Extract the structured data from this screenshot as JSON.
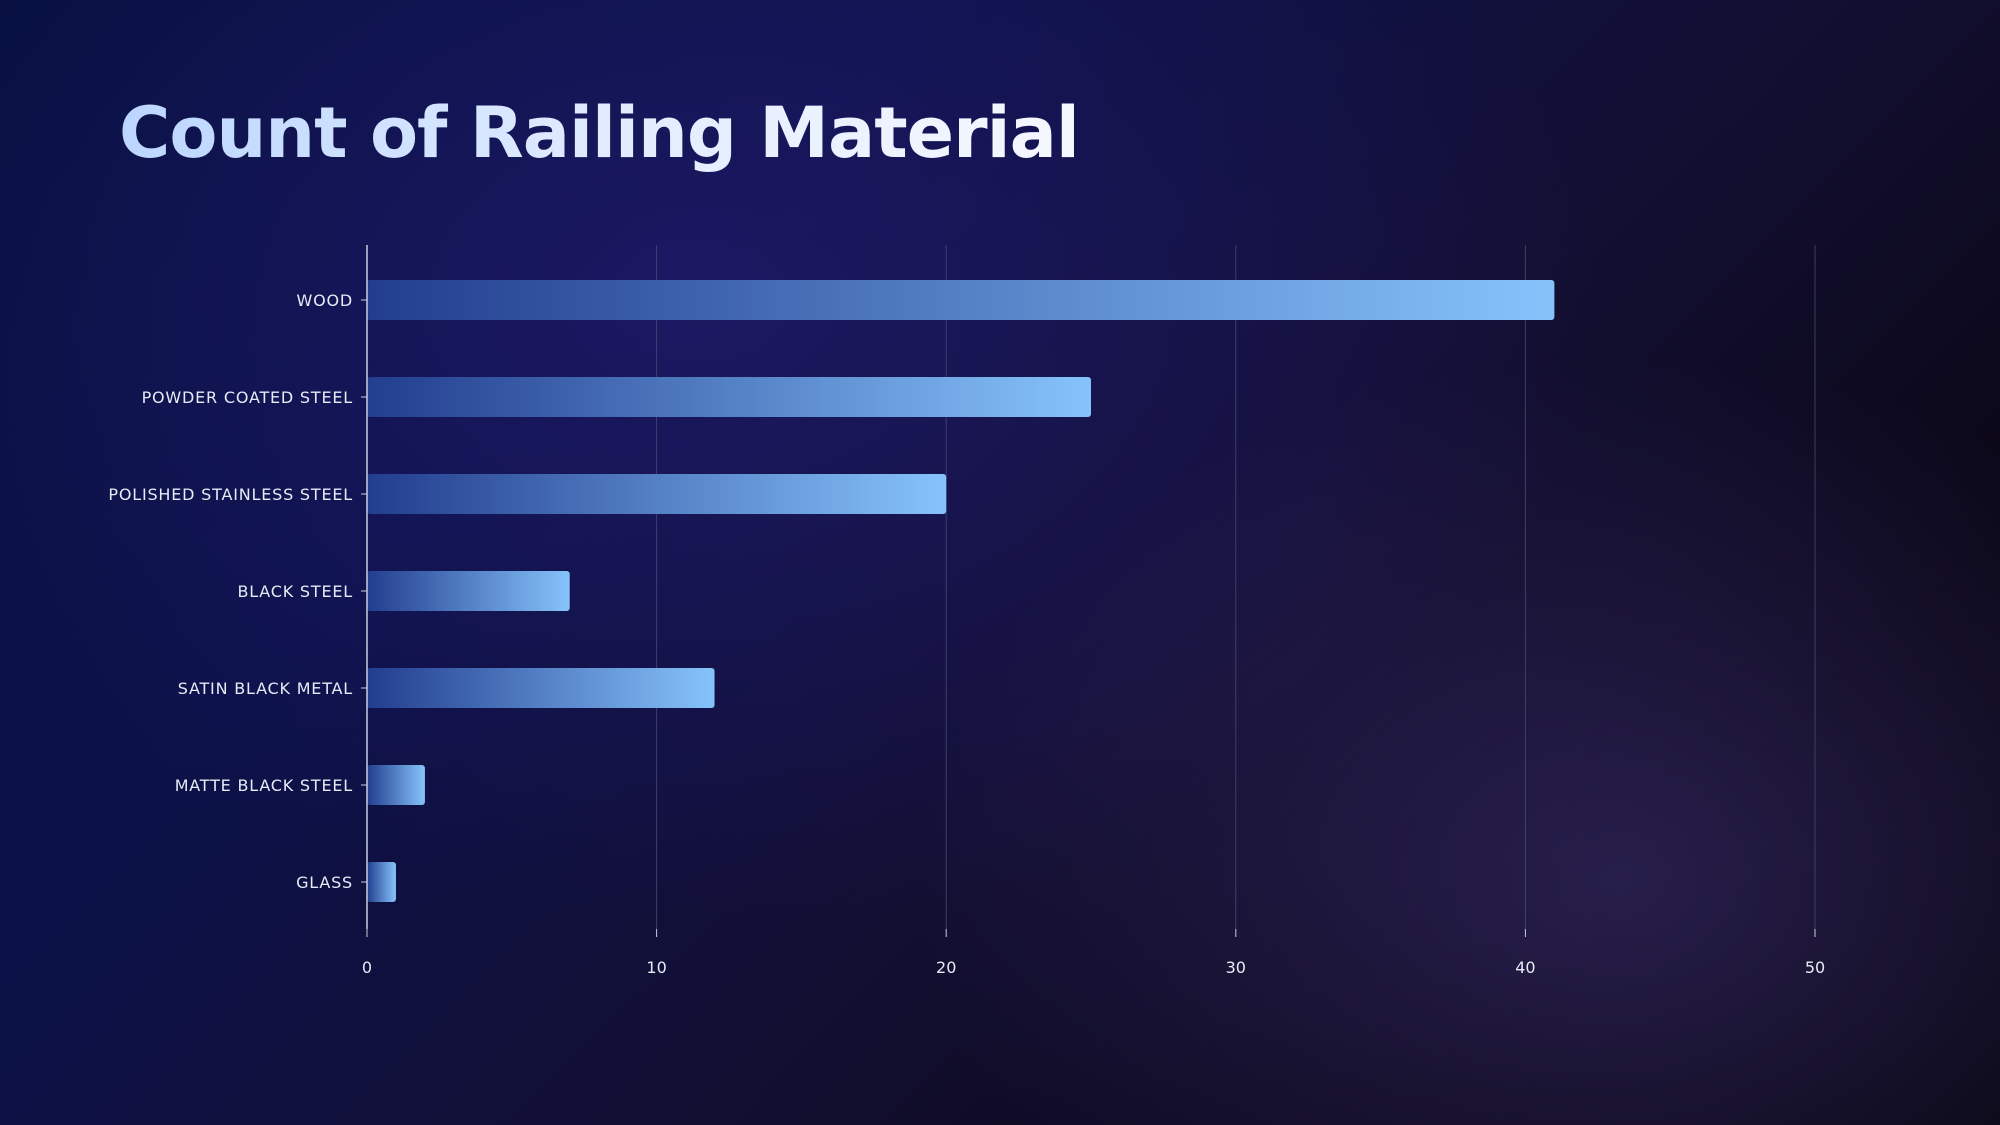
{
  "chart_data": {
    "type": "bar",
    "orientation": "horizontal",
    "title": "Count of Railing Material",
    "categories": [
      "WOOD",
      "POWDER COATED STEEL",
      "POLISHED STAINLESS STEEL",
      "BLACK STEEL",
      "SATIN BLACK METAL",
      "MATTE BLACK STEEL",
      "GLASS"
    ],
    "values": [
      41,
      25,
      20,
      7,
      12,
      2,
      1
    ],
    "xlim": [
      0,
      50
    ],
    "xticks": [
      "0",
      "10",
      "20",
      "30",
      "40",
      "50"
    ],
    "grid": "vertical",
    "legend": "none"
  },
  "colors": {
    "bar_start": "#223d8e",
    "bar_end": "#86c3fb",
    "grid": "#4a4d7a",
    "axis": "#c9cde0"
  }
}
